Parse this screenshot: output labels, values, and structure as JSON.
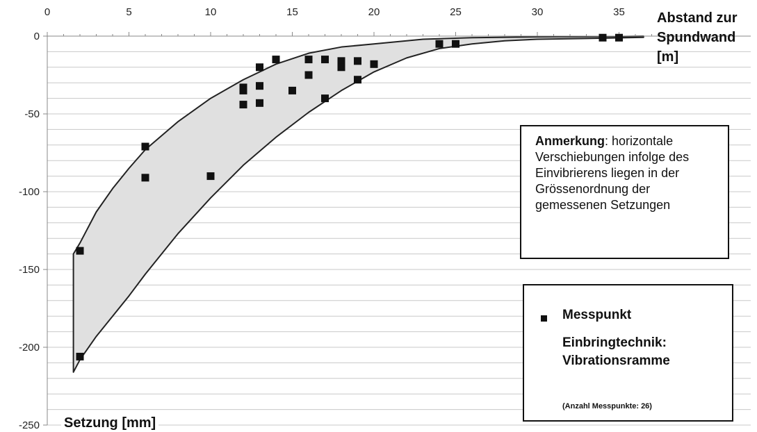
{
  "chart_data": {
    "type": "scatter",
    "xlabel": "Abstand zur Spundwand [m]",
    "ylabel": "Setzung [mm]",
    "xlim": [
      0,
      37
    ],
    "ylim": [
      -250,
      0
    ],
    "xticks": [
      0,
      5,
      10,
      15,
      20,
      25,
      30,
      35
    ],
    "yticks": [
      0,
      -50,
      -100,
      -150,
      -200,
      -250
    ],
    "grid": "horizontal",
    "x_axis_position": "top",
    "series": [
      {
        "name": "Messpunkt",
        "marker": "square",
        "points": [
          {
            "x": 2,
            "y": -138
          },
          {
            "x": 2,
            "y": -206
          },
          {
            "x": 6,
            "y": -71
          },
          {
            "x": 6,
            "y": -91
          },
          {
            "x": 10,
            "y": -90
          },
          {
            "x": 12,
            "y": -33
          },
          {
            "x": 12,
            "y": -35
          },
          {
            "x": 12,
            "y": -44
          },
          {
            "x": 13,
            "y": -20
          },
          {
            "x": 13,
            "y": -32
          },
          {
            "x": 13,
            "y": -43
          },
          {
            "x": 14,
            "y": -15
          },
          {
            "x": 15,
            "y": -35
          },
          {
            "x": 16,
            "y": -15
          },
          {
            "x": 16,
            "y": -25
          },
          {
            "x": 17,
            "y": -15
          },
          {
            "x": 17,
            "y": -40
          },
          {
            "x": 18,
            "y": -16
          },
          {
            "x": 18,
            "y": -20
          },
          {
            "x": 19,
            "y": -16
          },
          {
            "x": 19,
            "y": -28
          },
          {
            "x": 20,
            "y": -18
          },
          {
            "x": 24,
            "y": -5
          },
          {
            "x": 25,
            "y": -5
          },
          {
            "x": 34,
            "y": -1
          },
          {
            "x": 35,
            "y": -1
          }
        ]
      }
    ],
    "envelope": {
      "fill": "#e0e0e0",
      "upper": [
        [
          1.6,
          -140
        ],
        [
          2,
          -133
        ],
        [
          3,
          -113
        ],
        [
          4,
          -98
        ],
        [
          5,
          -85
        ],
        [
          6,
          -73
        ],
        [
          8,
          -55
        ],
        [
          10,
          -40
        ],
        [
          12,
          -28
        ],
        [
          14,
          -18
        ],
        [
          16,
          -11
        ],
        [
          18,
          -7
        ],
        [
          20,
          -5
        ],
        [
          23,
          -2
        ],
        [
          26,
          -1
        ],
        [
          30,
          -0.5
        ],
        [
          35,
          -0.2
        ],
        [
          36.5,
          0
        ]
      ],
      "lower": [
        [
          1.6,
          -216
        ],
        [
          2,
          -208
        ],
        [
          3,
          -193
        ],
        [
          4,
          -180
        ],
        [
          5,
          -167
        ],
        [
          6,
          -153
        ],
        [
          8,
          -127
        ],
        [
          10,
          -104
        ],
        [
          12,
          -83
        ],
        [
          14,
          -65
        ],
        [
          16,
          -49
        ],
        [
          18,
          -35
        ],
        [
          20,
          -23
        ],
        [
          22,
          -14
        ],
        [
          24,
          -8
        ],
        [
          26,
          -5
        ],
        [
          28,
          -3
        ],
        [
          30,
          -2
        ],
        [
          33,
          -1.5
        ],
        [
          36.5,
          -0.8
        ]
      ]
    },
    "colors": {
      "marker": "#111111",
      "envelope_fill": "#e0e0e0",
      "grid": "#c8c8c8",
      "axis": "#888888"
    }
  },
  "axis_titles": {
    "x_line1": "Abstand zur",
    "x_line2": "Spundwand",
    "x_line3": "[m]",
    "y": "Setzung [mm]"
  },
  "note": {
    "heading": "Anmerkung",
    "text": ": horizontale Verschiebungen infolge des Einvibrierens liegen in der Grössenordnung der gemessenen Setzungen"
  },
  "legend": {
    "marker_label": "Messpunkt",
    "technique_line1": "Einbringtechnik:",
    "technique_line2": "Vibrationsramme",
    "count_note": "(Anzahl Messpunkte: 26)"
  }
}
